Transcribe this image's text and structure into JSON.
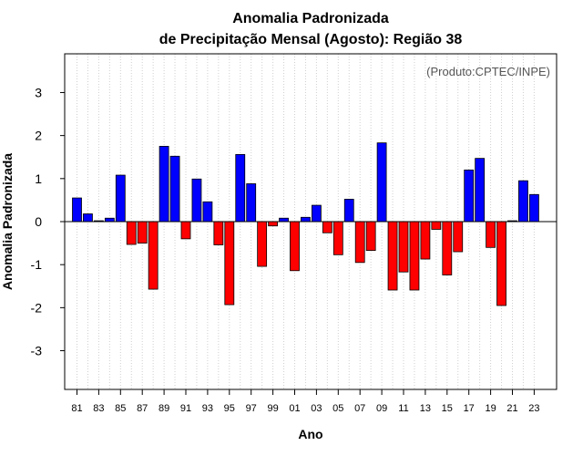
{
  "chart_data": {
    "type": "bar",
    "title": "Anomalia Padronizada",
    "subtitle": "de Precipitação Mensal (Agosto): Região 38",
    "xlabel": "Ano",
    "ylabel": "Anomalia Padronizada",
    "credit": "(Produto:CPTEC/INPE)",
    "ylim": [
      -3.9,
      3.9
    ],
    "yticks": [
      -3,
      -2,
      -1,
      0,
      1,
      2,
      3
    ],
    "grid": "vertical-dotted",
    "positive_color": "#0000ff",
    "negative_color": "#ff0000",
    "categories": [
      "1981",
      "1982",
      "1983",
      "1984",
      "1985",
      "1986",
      "1987",
      "1988",
      "1989",
      "1990",
      "1991",
      "1992",
      "1993",
      "1994",
      "1995",
      "1996",
      "1997",
      "1998",
      "1999",
      "2000",
      "2001",
      "2002",
      "2003",
      "2004",
      "2005",
      "2006",
      "2007",
      "2008",
      "2009",
      "2010",
      "2011",
      "2012",
      "2013",
      "2014",
      "2015",
      "2016",
      "2017",
      "2018",
      "2019",
      "2020",
      "2021",
      "2022",
      "2023"
    ],
    "xtick_labels": [
      "81",
      "83",
      "85",
      "87",
      "89",
      "91",
      "93",
      "95",
      "97",
      "99",
      "01",
      "03",
      "05",
      "07",
      "09",
      "11",
      "13",
      "15",
      "17",
      "19",
      "21",
      "23"
    ],
    "values": [
      0.55,
      0.18,
      0.02,
      0.08,
      1.08,
      -0.53,
      -0.5,
      -1.57,
      1.75,
      1.52,
      -0.4,
      0.99,
      0.46,
      -0.54,
      -1.93,
      1.56,
      0.88,
      -1.04,
      -0.1,
      0.08,
      -1.14,
      0.1,
      0.38,
      -0.26,
      -0.77,
      0.52,
      -0.95,
      -0.67,
      1.83,
      -1.59,
      -1.17,
      -1.59,
      -0.87,
      -0.18,
      -1.24,
      -0.7,
      1.2,
      1.47,
      -0.6,
      -1.95,
      0.02,
      0.95,
      0.63
    ]
  }
}
